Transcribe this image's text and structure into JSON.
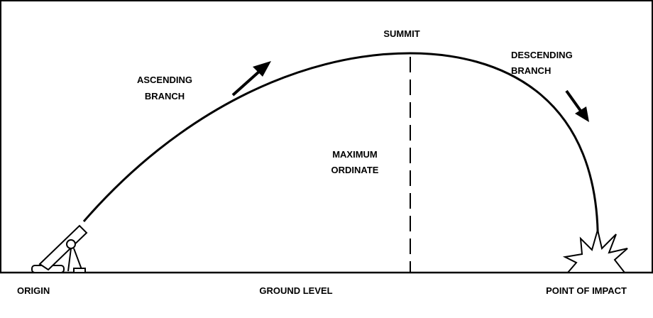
{
  "labels": {
    "summit": "SUMMIT",
    "ascending_branch": [
      "ASCENDING",
      "BRANCH"
    ],
    "descending_branch": [
      "DESCENDING",
      "BRANCH"
    ],
    "maximum_ordinate": [
      "MAXIMUM",
      "ORDINATE"
    ],
    "origin": "ORIGIN",
    "ground_level": "GROUND LEVEL",
    "point_of_impact": "POINT OF IMPACT"
  }
}
